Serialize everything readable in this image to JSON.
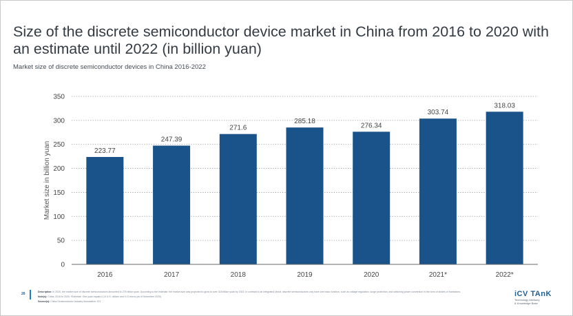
{
  "title": "Size of the discrete semiconductor device market in China from 2016 to 2020 with an estimate until 2022 (in billion yuan)",
  "subtitle": "Market size of discrete semiconductor devices in China 2016-2022",
  "chart_data": {
    "type": "bar",
    "categories": [
      "2016",
      "2017",
      "2018",
      "2019",
      "2020",
      "2021*",
      "2022*"
    ],
    "values": [
      223.77,
      247.39,
      271.6,
      285.18,
      276.34,
      303.74,
      318.03
    ],
    "value_labels": [
      "223.77",
      "247.39",
      "271.6",
      "285.18",
      "276.34",
      "303.74",
      "318.03"
    ],
    "ylabel": "Market size in billion yuan",
    "xlabel": "",
    "ylim": [
      0,
      350
    ],
    "yticks": [
      0,
      50,
      100,
      150,
      200,
      250,
      300,
      350
    ],
    "grid": true,
    "bar_color": "#1a5389"
  },
  "footer": {
    "page_number": "26",
    "line1_label": "Description:",
    "line1_text": "In 2020, the market size of discrete semiconductors amounted to 276 billion yuan. According to the estimate, the market size was projected to grow to over 318 billion yuan by 2022. In contrast to an integrated circuit, discrete semiconductors only have one basic function, such as voltage regulation, surge protection, and switching power conversion in the form of diodes or transistors.",
    "line2_label": "Note(s):",
    "line2_text": "China; 2016 to 2020; *Estimate. One yuan equals 0.14 U.S. dollars and 0.13 euros (as of November 2020).",
    "line3_label": "Source(s):",
    "line3_text": "China Semiconductor Industry Association; ICV"
  },
  "logo": {
    "name": "iCV TAnK",
    "line1": "Technology Advisory",
    "line2": "& Knowledge Base"
  }
}
